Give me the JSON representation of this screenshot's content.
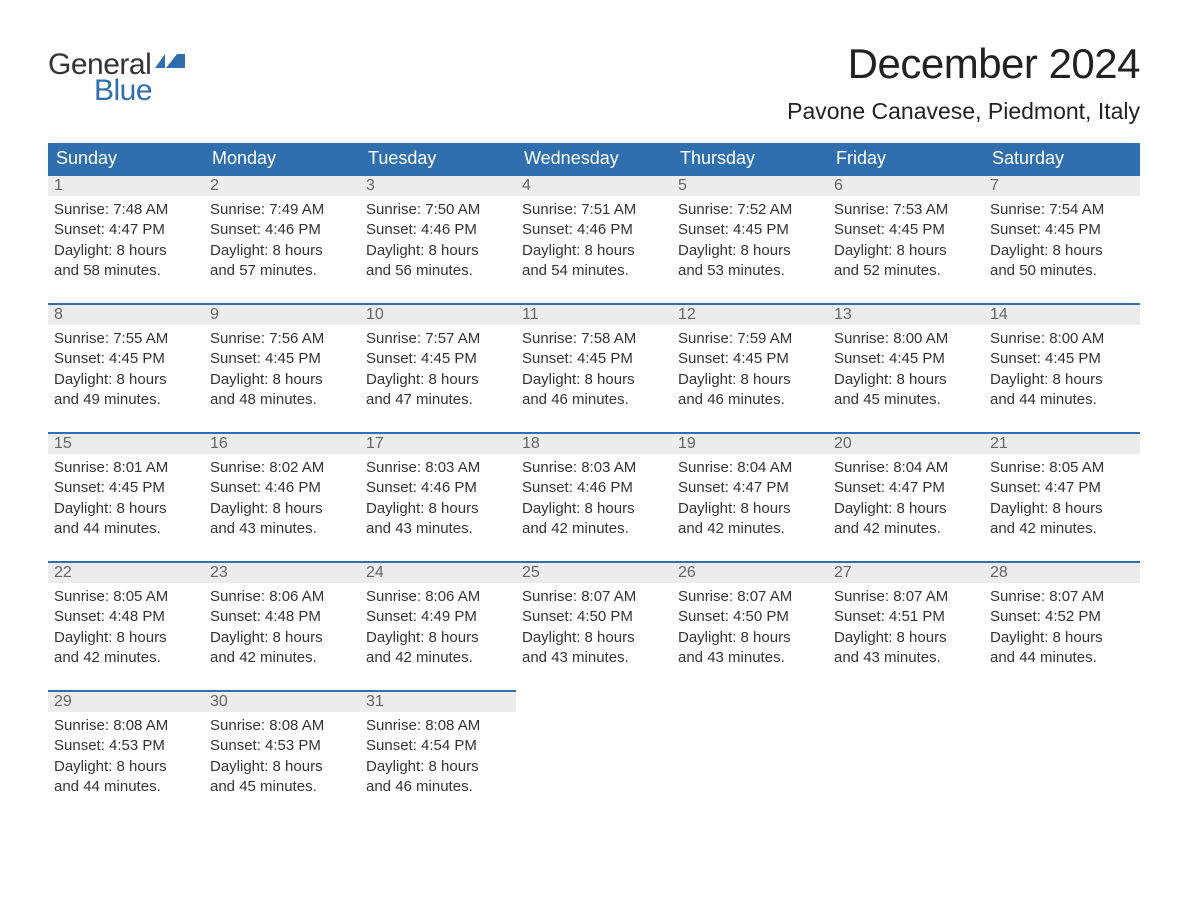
{
  "logo": {
    "text1": "General",
    "text2": "Blue",
    "flag_color": "#2f6fb0"
  },
  "title": "December 2024",
  "location": "Pavone Canavese, Piedmont, Italy",
  "colors": {
    "header_bg": "#2f6fb0",
    "header_text": "#ffffff",
    "day_number_bg": "#ececec",
    "day_number_text": "#666666",
    "cell_border": "#2f6fb0",
    "body_text": "#333333"
  },
  "typography": {
    "title_fontsize": 42,
    "location_fontsize": 23,
    "header_fontsize": 18,
    "daynum_fontsize": 16,
    "body_fontsize": 15
  },
  "weekdays": [
    "Sunday",
    "Monday",
    "Tuesday",
    "Wednesday",
    "Thursday",
    "Friday",
    "Saturday"
  ],
  "weeks": [
    [
      {
        "num": "1",
        "sunrise": "7:48 AM",
        "sunset": "4:47 PM",
        "daylight1": "8 hours",
        "daylight2": "and 58 minutes."
      },
      {
        "num": "2",
        "sunrise": "7:49 AM",
        "sunset": "4:46 PM",
        "daylight1": "8 hours",
        "daylight2": "and 57 minutes."
      },
      {
        "num": "3",
        "sunrise": "7:50 AM",
        "sunset": "4:46 PM",
        "daylight1": "8 hours",
        "daylight2": "and 56 minutes."
      },
      {
        "num": "4",
        "sunrise": "7:51 AM",
        "sunset": "4:46 PM",
        "daylight1": "8 hours",
        "daylight2": "and 54 minutes."
      },
      {
        "num": "5",
        "sunrise": "7:52 AM",
        "sunset": "4:45 PM",
        "daylight1": "8 hours",
        "daylight2": "and 53 minutes."
      },
      {
        "num": "6",
        "sunrise": "7:53 AM",
        "sunset": "4:45 PM",
        "daylight1": "8 hours",
        "daylight2": "and 52 minutes."
      },
      {
        "num": "7",
        "sunrise": "7:54 AM",
        "sunset": "4:45 PM",
        "daylight1": "8 hours",
        "daylight2": "and 50 minutes."
      }
    ],
    [
      {
        "num": "8",
        "sunrise": "7:55 AM",
        "sunset": "4:45 PM",
        "daylight1": "8 hours",
        "daylight2": "and 49 minutes."
      },
      {
        "num": "9",
        "sunrise": "7:56 AM",
        "sunset": "4:45 PM",
        "daylight1": "8 hours",
        "daylight2": "and 48 minutes."
      },
      {
        "num": "10",
        "sunrise": "7:57 AM",
        "sunset": "4:45 PM",
        "daylight1": "8 hours",
        "daylight2": "and 47 minutes."
      },
      {
        "num": "11",
        "sunrise": "7:58 AM",
        "sunset": "4:45 PM",
        "daylight1": "8 hours",
        "daylight2": "and 46 minutes."
      },
      {
        "num": "12",
        "sunrise": "7:59 AM",
        "sunset": "4:45 PM",
        "daylight1": "8 hours",
        "daylight2": "and 46 minutes."
      },
      {
        "num": "13",
        "sunrise": "8:00 AM",
        "sunset": "4:45 PM",
        "daylight1": "8 hours",
        "daylight2": "and 45 minutes."
      },
      {
        "num": "14",
        "sunrise": "8:00 AM",
        "sunset": "4:45 PM",
        "daylight1": "8 hours",
        "daylight2": "and 44 minutes."
      }
    ],
    [
      {
        "num": "15",
        "sunrise": "8:01 AM",
        "sunset": "4:45 PM",
        "daylight1": "8 hours",
        "daylight2": "and 44 minutes."
      },
      {
        "num": "16",
        "sunrise": "8:02 AM",
        "sunset": "4:46 PM",
        "daylight1": "8 hours",
        "daylight2": "and 43 minutes."
      },
      {
        "num": "17",
        "sunrise": "8:03 AM",
        "sunset": "4:46 PM",
        "daylight1": "8 hours",
        "daylight2": "and 43 minutes."
      },
      {
        "num": "18",
        "sunrise": "8:03 AM",
        "sunset": "4:46 PM",
        "daylight1": "8 hours",
        "daylight2": "and 42 minutes."
      },
      {
        "num": "19",
        "sunrise": "8:04 AM",
        "sunset": "4:47 PM",
        "daylight1": "8 hours",
        "daylight2": "and 42 minutes."
      },
      {
        "num": "20",
        "sunrise": "8:04 AM",
        "sunset": "4:47 PM",
        "daylight1": "8 hours",
        "daylight2": "and 42 minutes."
      },
      {
        "num": "21",
        "sunrise": "8:05 AM",
        "sunset": "4:47 PM",
        "daylight1": "8 hours",
        "daylight2": "and 42 minutes."
      }
    ],
    [
      {
        "num": "22",
        "sunrise": "8:05 AM",
        "sunset": "4:48 PM",
        "daylight1": "8 hours",
        "daylight2": "and 42 minutes."
      },
      {
        "num": "23",
        "sunrise": "8:06 AM",
        "sunset": "4:48 PM",
        "daylight1": "8 hours",
        "daylight2": "and 42 minutes."
      },
      {
        "num": "24",
        "sunrise": "8:06 AM",
        "sunset": "4:49 PM",
        "daylight1": "8 hours",
        "daylight2": "and 42 minutes."
      },
      {
        "num": "25",
        "sunrise": "8:07 AM",
        "sunset": "4:50 PM",
        "daylight1": "8 hours",
        "daylight2": "and 43 minutes."
      },
      {
        "num": "26",
        "sunrise": "8:07 AM",
        "sunset": "4:50 PM",
        "daylight1": "8 hours",
        "daylight2": "and 43 minutes."
      },
      {
        "num": "27",
        "sunrise": "8:07 AM",
        "sunset": "4:51 PM",
        "daylight1": "8 hours",
        "daylight2": "and 43 minutes."
      },
      {
        "num": "28",
        "sunrise": "8:07 AM",
        "sunset": "4:52 PM",
        "daylight1": "8 hours",
        "daylight2": "and 44 minutes."
      }
    ],
    [
      {
        "num": "29",
        "sunrise": "8:08 AM",
        "sunset": "4:53 PM",
        "daylight1": "8 hours",
        "daylight2": "and 44 minutes."
      },
      {
        "num": "30",
        "sunrise": "8:08 AM",
        "sunset": "4:53 PM",
        "daylight1": "8 hours",
        "daylight2": "and 45 minutes."
      },
      {
        "num": "31",
        "sunrise": "8:08 AM",
        "sunset": "4:54 PM",
        "daylight1": "8 hours",
        "daylight2": "and 46 minutes."
      },
      null,
      null,
      null,
      null
    ]
  ],
  "labels": {
    "sunrise": "Sunrise:",
    "sunset": "Sunset:",
    "daylight": "Daylight:"
  }
}
